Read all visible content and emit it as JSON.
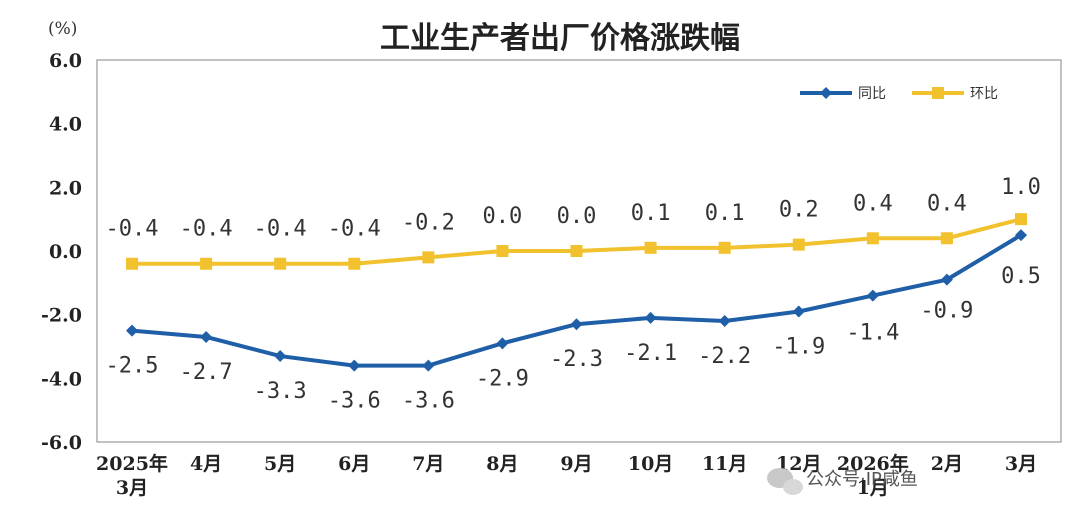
{
  "chart_data": {
    "type": "line",
    "title": "工业生产者出厂价格涨跌幅",
    "unit_label": "(%)",
    "categories": [
      "2025年\n3月",
      "4月",
      "5月",
      "6月",
      "7月",
      "8月",
      "9月",
      "10月",
      "11月",
      "12月",
      "2026年\n1月",
      "2月",
      "3月"
    ],
    "ylim": [
      -6.0,
      6.0
    ],
    "yticks": [
      "6.0",
      "4.0",
      "2.0",
      "0.0",
      "-2.0",
      "-4.0",
      "-6.0"
    ],
    "grid": false,
    "legend_position": "top-right",
    "series": [
      {
        "name": "同比",
        "color": "#1f5fa8",
        "marker": "diamond",
        "values": [
          -2.5,
          -2.7,
          -3.3,
          -3.6,
          -3.6,
          -2.9,
          -2.3,
          -2.1,
          -2.2,
          -1.9,
          -1.4,
          -0.9,
          0.5
        ],
        "labels": [
          "-2.5",
          "-2.7",
          "-3.3",
          "-3.6",
          "-3.6",
          "-2.9",
          "-2.3",
          "-2.1",
          "-2.2",
          "-1.9",
          "-1.4",
          "-0.9",
          "0.5"
        ]
      },
      {
        "name": "环比",
        "color": "#f2c12e",
        "marker": "square",
        "values": [
          -0.4,
          -0.4,
          -0.4,
          -0.4,
          -0.2,
          0.0,
          0.0,
          0.1,
          0.1,
          0.2,
          0.4,
          0.4,
          1.0
        ],
        "labels": [
          "-0.4",
          "-0.4",
          "-0.4",
          "-0.4",
          "-0.2",
          "0.0",
          "0.0",
          "0.1",
          "0.1",
          "0.2",
          "0.4",
          "0.4",
          "1.0"
        ]
      }
    ]
  },
  "watermark": {
    "icon": "wechat-icon",
    "text": "公众号·IP咸鱼"
  }
}
